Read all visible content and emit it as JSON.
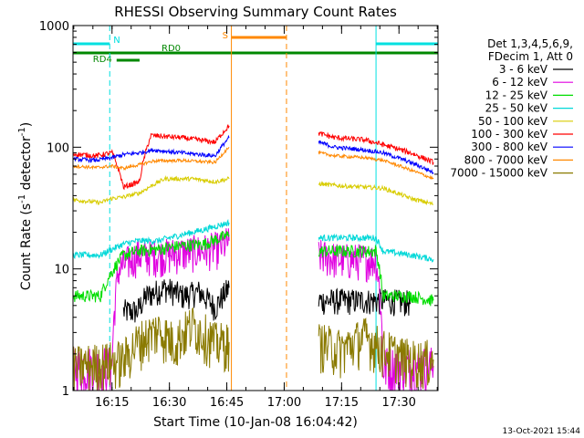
{
  "chart_data": {
    "type": "line",
    "title": "RHESSI Observing Summary Count Rates",
    "xlabel": "Start Time (10-Jan-08 16:04:42)",
    "ylabel_main": "Count Rate (s",
    "ylabel_sup1": "-1",
    "ylabel_mid": " detector",
    "ylabel_sup2": "-1",
    "ylabel_end": ")",
    "yscale": "log",
    "ylim": [
      1,
      1000
    ],
    "xlim_minutes": [
      16.08,
      17.67
    ],
    "x_tick_minutes": [
      16.25,
      16.5,
      16.75,
      17.0,
      17.25,
      17.5
    ],
    "x_tick_labels": [
      "16:15",
      "16:30",
      "16:45",
      "17:00",
      "17:15",
      "17:30"
    ],
    "y_tick_values": [
      1,
      10,
      100,
      1000
    ],
    "y_tick_labels": [
      "1",
      "10",
      "100",
      "1000"
    ],
    "legend_header": [
      "Det 1,3,4,5,6,9,",
      "FDecim 1, Att 0"
    ],
    "legend_position": "right",
    "series": [
      {
        "name": "3 - 6 keV",
        "color": "#000000",
        "segments": [
          {
            "x": [
              16.3,
              16.36,
              16.4,
              16.48,
              16.56,
              16.63,
              16.7,
              16.76
            ],
            "y": [
              4.5,
              4.5,
              6,
              7,
              6,
              6.5,
              4.8,
              7
            ]
          },
          {
            "x": [
              17.15,
              17.25,
              17.35,
              17.45,
              17.55
            ],
            "y": [
              5.5,
              5.5,
              5.5,
              5.5,
              5.3
            ]
          }
        ]
      },
      {
        "name": "6 - 12 keV",
        "color": "#e000e0",
        "segments": [
          {
            "x": [
              16.08,
              16.18,
              16.25,
              16.28,
              16.36,
              16.46,
              16.6,
              16.72,
              16.76
            ],
            "y": [
              1.6,
              1.6,
              1.6,
              10,
              13,
              13,
              14,
              15,
              17
            ]
          },
          {
            "x": [
              17.15,
              17.25,
              17.4,
              17.43,
              17.55,
              17.65
            ],
            "y": [
              13,
              12,
              12,
              1.6,
              1.6,
              1.6
            ]
          }
        ]
      },
      {
        "name": "12 - 25 keV",
        "color": "#00dd00",
        "segments": [
          {
            "x": [
              16.08,
              16.2,
              16.3,
              16.36,
              16.45,
              16.55,
              16.65,
              16.76
            ],
            "y": [
              6,
              6,
              13,
              14,
              14.5,
              15.5,
              16,
              19
            ]
          },
          {
            "x": [
              17.15,
              17.3,
              17.4,
              17.43,
              17.55,
              17.65
            ],
            "y": [
              14,
              14,
              14,
              6,
              6,
              5.5
            ]
          }
        ]
      },
      {
        "name": "25 - 50 keV",
        "color": "#00d8d8",
        "segments": [
          {
            "x": [
              16.08,
              16.2,
              16.3,
              16.36,
              16.45,
              16.55,
              16.65,
              16.76
            ],
            "y": [
              13,
              13,
              16,
              17,
              17,
              19,
              21,
              24
            ]
          },
          {
            "x": [
              17.15,
              17.3,
              17.4,
              17.43,
              17.55,
              17.65
            ],
            "y": [
              18,
              18,
              18,
              14,
              13,
              12
            ]
          }
        ]
      },
      {
        "name": "50 - 100 keV",
        "color": "#d8cc00",
        "segments": [
          {
            "x": [
              16.08,
              16.2,
              16.25,
              16.3,
              16.37,
              16.48,
              16.6,
              16.7,
              16.76
            ],
            "y": [
              37,
              35,
              38,
              39,
              42,
              55,
              55,
              52,
              55
            ]
          },
          {
            "x": [
              17.15,
              17.25,
              17.35,
              17.43,
              17.55,
              17.65
            ],
            "y": [
              50,
              48,
              47,
              46,
              38,
              34
            ]
          }
        ]
      },
      {
        "name": "100 - 300 keV",
        "color": "#ff0000",
        "segments": [
          {
            "x": [
              16.08,
              16.18,
              16.25,
              16.3,
              16.37,
              16.42,
              16.55,
              16.7,
              16.76
            ],
            "y": [
              88,
              85,
              90,
              47,
              52,
              125,
              120,
              110,
              150
            ]
          },
          {
            "x": [
              17.15,
              17.22,
              17.35,
              17.43,
              17.55,
              17.65
            ],
            "y": [
              130,
              120,
              115,
              105,
              90,
              75
            ]
          }
        ]
      },
      {
        "name": "300 - 800 keV",
        "color": "#0000ff",
        "segments": [
          {
            "x": [
              16.08,
              16.18,
              16.25,
              16.3,
              16.37,
              16.43,
              16.55,
              16.7,
              16.76
            ],
            "y": [
              80,
              78,
              82,
              87,
              90,
              95,
              90,
              85,
              120
            ]
          },
          {
            "x": [
              17.15,
              17.22,
              17.35,
              17.43,
              17.55,
              17.65
            ],
            "y": [
              110,
              100,
              95,
              90,
              75,
              62
            ]
          }
        ]
      },
      {
        "name": "800 - 7000 keV",
        "color": "#ff8800",
        "segments": [
          {
            "x": [
              16.08,
              16.18,
              16.25,
              16.3,
              16.37,
              16.43,
              16.55,
              16.7,
              16.76
            ],
            "y": [
              70,
              68,
              70,
              67,
              72,
              77,
              78,
              75,
              100
            ]
          },
          {
            "x": [
              17.15,
              17.22,
              17.35,
              17.43,
              17.55,
              17.65
            ],
            "y": [
              90,
              85,
              82,
              78,
              65,
              55
            ]
          }
        ]
      },
      {
        "name": "7000 - 15000 keV",
        "color": "#8a7a00",
        "segments": [
          {
            "x": [
              16.08,
              16.3,
              16.36,
              16.45,
              16.52,
              16.6,
              16.7,
              16.76
            ],
            "y": [
              1.6,
              1.8,
              2.5,
              3.2,
              2.5,
              3.5,
              2.5,
              2.5
            ]
          },
          {
            "x": [
              17.15,
              17.25,
              17.35,
              17.43,
              17.55,
              17.65
            ],
            "y": [
              2.5,
              2.2,
              2.8,
              2.2,
              1.8,
              1.8
            ]
          }
        ]
      }
    ],
    "flags": [
      {
        "label": "N",
        "color": "#00e0e0",
        "segments": [
          [
            16.08,
            16.24
          ],
          [
            17.4,
            17.67
          ]
        ]
      },
      {
        "label": "S",
        "color": "#ff8800",
        "segments": [
          [
            16.77,
            17.01
          ]
        ]
      },
      {
        "label": "RD0",
        "color": "#008800",
        "segments": [
          [
            16.08,
            17.67
          ]
        ]
      },
      {
        "label": "RD4",
        "color": "#008800",
        "segments": [
          [
            16.27,
            16.37
          ]
        ]
      }
    ],
    "vertical_lines": [
      {
        "x": 16.08,
        "color": "#00e0e0",
        "style": "solid"
      },
      {
        "x": 16.24,
        "color": "#00e0e0",
        "style": "dashed"
      },
      {
        "x": 16.77,
        "color": "#ff8800",
        "style": "solid"
      },
      {
        "x": 17.01,
        "color": "#ff8800",
        "style": "dashed"
      },
      {
        "x": 17.4,
        "color": "#00e0e0",
        "style": "solid"
      },
      {
        "x": 17.67,
        "color": "#00e0e0",
        "style": "dashed"
      }
    ],
    "footer_date": "13-Oct-2021 15:44"
  }
}
